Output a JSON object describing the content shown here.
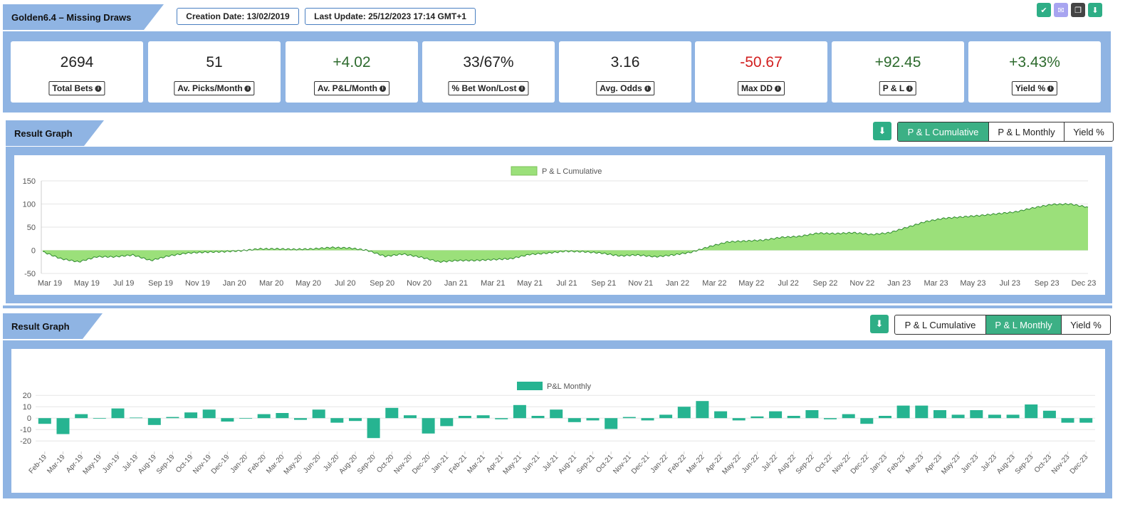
{
  "header": {
    "title": "Golden6.4 – Missing Draws",
    "creation_date": "Creation Date: 13/02/2019",
    "last_update": "Last Update: 25/12/2023 17:14 GMT+1"
  },
  "top_icons": [
    {
      "name": "check-icon",
      "color": "#2eae86"
    },
    {
      "name": "mail-icon",
      "color": "#a7a4f0"
    },
    {
      "name": "copy-icon",
      "color": "#444444"
    },
    {
      "name": "download-icon",
      "color": "#2eae86"
    }
  ],
  "stats": [
    {
      "value": "2694",
      "label": "Total Bets",
      "tone": "neu"
    },
    {
      "value": "51",
      "label": "Av. Picks/Month",
      "tone": "neu"
    },
    {
      "value": "+4.02",
      "label": "Av. P&L/Month",
      "tone": "pos"
    },
    {
      "value": "33/67%",
      "label": "% Bet Won/Lost",
      "tone": "neu"
    },
    {
      "value": "3.16",
      "label": "Avg. Odds",
      "tone": "neu"
    },
    {
      "value": "-50.67",
      "label": "Max DD",
      "tone": "neg"
    },
    {
      "value": "+92.45",
      "label": "P & L",
      "tone": "pos"
    },
    {
      "value": "+3.43%",
      "label": "Yield %",
      "tone": "pos"
    }
  ],
  "graph1": {
    "title": "Result Graph",
    "toggles": [
      "P & L Cumulative",
      "P & L Monthly",
      "Yield %"
    ],
    "active": 0
  },
  "graph2": {
    "title": "Result Graph",
    "toggles": [
      "P & L Cumulative",
      "P & L Monthly",
      "Yield %"
    ],
    "active": 1
  },
  "colors": {
    "accent": "#3cb085",
    "band": "#8fb4e3",
    "area_fill": "#9be07a",
    "area_line": "#2f8a2f",
    "bar": "#26b491"
  },
  "chart_data": [
    {
      "type": "area",
      "legend": "P & L Cumulative",
      "ylim": [
        -50,
        150
      ],
      "yticks": [
        150,
        100,
        50,
        0,
        -50
      ],
      "xlabels": [
        "Mar 19",
        "May 19",
        "Jul 19",
        "Sep 19",
        "Nov 19",
        "Jan 20",
        "Mar 20",
        "May 20",
        "Jul 20",
        "Sep 20",
        "Nov 20",
        "Jan 21",
        "Mar 21",
        "May 21",
        "Jul 21",
        "Sep 21",
        "Nov 21",
        "Jan 22",
        "Mar 22",
        "May 22",
        "Jul 22",
        "Sep 22",
        "Nov 22",
        "Jan 23",
        "Mar 23",
        "May 23",
        "Jul 23",
        "Sep 23",
        "Dec 23"
      ],
      "x": [
        "Feb 19",
        "Mar 19",
        "Apr 19",
        "May 19",
        "Jun 19",
        "Jul 19",
        "Aug 19",
        "Sep 19",
        "Oct 19",
        "Nov 19",
        "Dec 19",
        "Jan 20",
        "Feb 20",
        "Mar 20",
        "Apr 20",
        "May 20",
        "Jun 20",
        "Jul 20",
        "Aug 20",
        "Sep 20",
        "Oct 20",
        "Nov 20",
        "Dec 20",
        "Jan 21",
        "Feb 21",
        "Mar 21",
        "Apr 21",
        "May 21",
        "Jun 21",
        "Jul 21",
        "Aug 21",
        "Sep 21",
        "Oct 21",
        "Nov 21",
        "Dec 21",
        "Jan 22",
        "Feb 22",
        "Mar 22",
        "Apr 22",
        "May 22",
        "Jun 22",
        "Jul 22",
        "Aug 22",
        "Sep 22",
        "Oct 22",
        "Nov 22",
        "Dec 22",
        "Jan 23",
        "Feb 23",
        "Mar 23",
        "Apr 23",
        "May 23",
        "Jun 23",
        "Jul 23",
        "Aug 23",
        "Sep 23",
        "Oct 23",
        "Nov 23",
        "Dec 23"
      ],
      "values": [
        -3,
        -18,
        -25,
        -14,
        -14,
        -10,
        -22,
        -12,
        -6,
        -4,
        -3,
        -1,
        3,
        3,
        2,
        3,
        6,
        5,
        0,
        -13,
        -8,
        -15,
        -25,
        -22,
        -22,
        -20,
        -18,
        -9,
        -6,
        -2,
        -3,
        -6,
        -12,
        -10,
        -14,
        -10,
        -4,
        8,
        18,
        20,
        22,
        28,
        30,
        37,
        36,
        38,
        34,
        38,
        50,
        62,
        69,
        72,
        75,
        79,
        83,
        92,
        99,
        100,
        93
      ]
    },
    {
      "type": "bar",
      "legend": "P&L Monthly",
      "ylim": [
        -28,
        22
      ],
      "yticks": [
        20,
        10,
        0,
        -10,
        -20
      ],
      "categories": [
        "Feb-19",
        "Mar-19",
        "Apr-19",
        "May-19",
        "Jun-19",
        "Jul-19",
        "Aug-19",
        "Sep-19",
        "Oct-19",
        "Nov-19",
        "Dec-19",
        "Jan-20",
        "Feb-20",
        "Mar-20",
        "May-20",
        "Jun-20",
        "Jul-20",
        "Aug-20",
        "Sep-20",
        "Oct-20",
        "Nov-20",
        "Dec-20",
        "Jan-21",
        "Feb-21",
        "Mar-21",
        "Apr-21",
        "May-21",
        "Jun-21",
        "Jul-21",
        "Aug-21",
        "Sep-21",
        "Oct-21",
        "Nov-21",
        "Dec-21",
        "Jan-22",
        "Feb-22",
        "Mar-22",
        "Apr-22",
        "May-22",
        "Jun-22",
        "Jul-22",
        "Aug-22",
        "Sep-22",
        "Oct-22",
        "Nov-22",
        "Dec-22",
        "Jan-23",
        "Feb-23",
        "Mar-23",
        "Apr-23",
        "May-23",
        "Jun-23",
        "Jul-23",
        "Aug-23",
        "Sep-23",
        "Oct-23",
        "Nov-23",
        "Dec-23"
      ],
      "values": [
        -5,
        -14,
        3.5,
        0,
        8.5,
        0.5,
        -6,
        1,
        5,
        7.5,
        -3,
        0,
        3.5,
        4.5,
        -1.5,
        7.5,
        -4,
        -2.5,
        -17.5,
        9,
        2.5,
        -13.5,
        -7,
        2,
        2.5,
        -1,
        11.5,
        2,
        7.5,
        -3.5,
        -2,
        -9.5,
        1,
        -2,
        3,
        10,
        15,
        6,
        -2,
        1.5,
        6,
        2,
        7,
        -1,
        3.5,
        -5,
        2,
        11,
        11,
        7,
        3,
        7,
        3,
        3,
        12,
        6.5,
        -4,
        -4
      ]
    }
  ]
}
